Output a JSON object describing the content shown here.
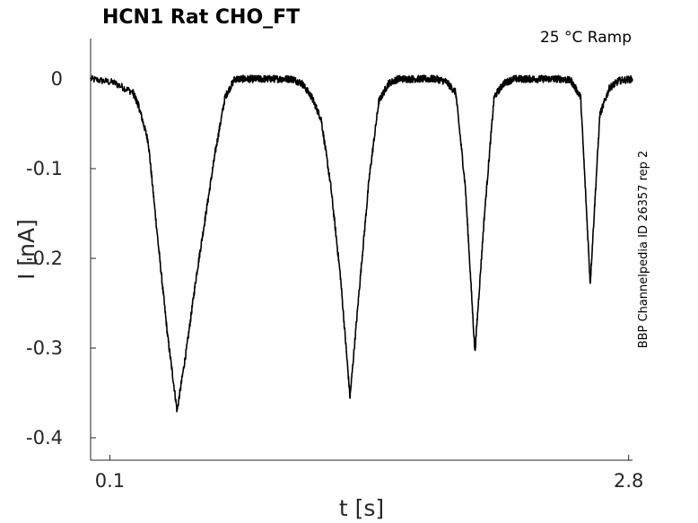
{
  "chart_data": {
    "type": "line",
    "title": "HCN1  Rat  CHO_FT",
    "annotation": "25 °C  Ramp",
    "side_label": "BBP Channelpedia ID 26357 rep 2",
    "xlabel": "t [s]",
    "ylabel": "I [nA]",
    "xlim": [
      0.0,
      2.82
    ],
    "ylim": [
      -0.425,
      0.045
    ],
    "xticks": [
      0.1,
      2.8
    ],
    "xtick_labels": [
      "0.1",
      "2.8"
    ],
    "yticks": [
      0,
      -0.1,
      -0.2,
      -0.3,
      -0.4
    ],
    "ytick_labels": [
      "0",
      "-0.1",
      "-0.2",
      "-0.3",
      "-0.4"
    ],
    "grid": false,
    "noise_amplitude": 0.004,
    "series": [
      {
        "x": [
          0.0,
          0.12,
          0.22,
          0.25,
          0.3,
          0.35,
          0.4,
          0.45,
          0.5,
          0.55,
          0.6,
          0.65,
          0.7,
          0.75,
          0.8,
          0.85,
          0.9,
          0.95,
          1.0,
          1.05,
          1.1,
          1.15,
          1.2,
          1.25,
          1.3,
          1.35,
          1.4,
          1.45,
          1.5,
          1.55,
          1.6,
          1.65,
          1.7,
          1.75,
          1.8,
          1.85,
          1.9,
          1.95,
          2.0,
          2.05,
          2.1,
          2.15,
          2.2,
          2.25,
          2.3,
          2.35,
          2.4,
          2.45,
          2.5,
          2.55,
          2.6,
          2.65,
          2.7,
          2.75,
          2.82
        ],
        "y": [
          0.0,
          -0.004,
          -0.015,
          -0.03,
          -0.07,
          -0.18,
          -0.285,
          -0.37,
          -0.3,
          -0.22,
          -0.15,
          -0.08,
          -0.02,
          0.0,
          0.0,
          0.0,
          0.0,
          0.0,
          0.0,
          0.0,
          -0.005,
          -0.02,
          -0.045,
          -0.12,
          -0.22,
          -0.355,
          -0.23,
          -0.11,
          -0.025,
          -0.005,
          0.0,
          0.0,
          0.0,
          0.0,
          0.0,
          -0.003,
          -0.015,
          -0.12,
          -0.305,
          -0.15,
          -0.02,
          -0.005,
          0.0,
          0.0,
          0.0,
          0.0,
          0.0,
          0.0,
          -0.002,
          -0.02,
          -0.228,
          -0.04,
          -0.01,
          -0.002,
          0.0
        ]
      }
    ]
  }
}
